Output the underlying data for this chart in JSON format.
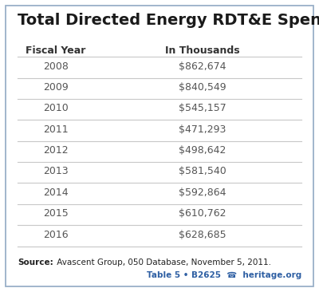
{
  "title": "Total Directed Energy RDT&E Spending",
  "col1_header": "Fiscal Year",
  "col2_header": "In Thousands",
  "rows": [
    [
      "2008",
      "$862,674"
    ],
    [
      "2009",
      "$840,549"
    ],
    [
      "2010",
      "$545,157"
    ],
    [
      "2011",
      "$471,293"
    ],
    [
      "2012",
      "$498,642"
    ],
    [
      "2013",
      "$581,540"
    ],
    [
      "2014",
      "$592,864"
    ],
    [
      "2015",
      "$610,762"
    ],
    [
      "2016",
      "$628,685"
    ]
  ],
  "source_bold": "Source:",
  "source_rest": " Avascent Group, 050 Database, November 5, 2011.",
  "footer_left": "Table 5 • B2625",
  "footer_icon": "☎",
  "footer_site": "heritage.org",
  "bg_color": "#ffffff",
  "border_color": "#9ab0c8",
  "line_color": "#c8c8c8",
  "title_color": "#1a1a1a",
  "header_color": "#333333",
  "data_color": "#555555",
  "source_color": "#222222",
  "footer_color": "#2e5fa3"
}
